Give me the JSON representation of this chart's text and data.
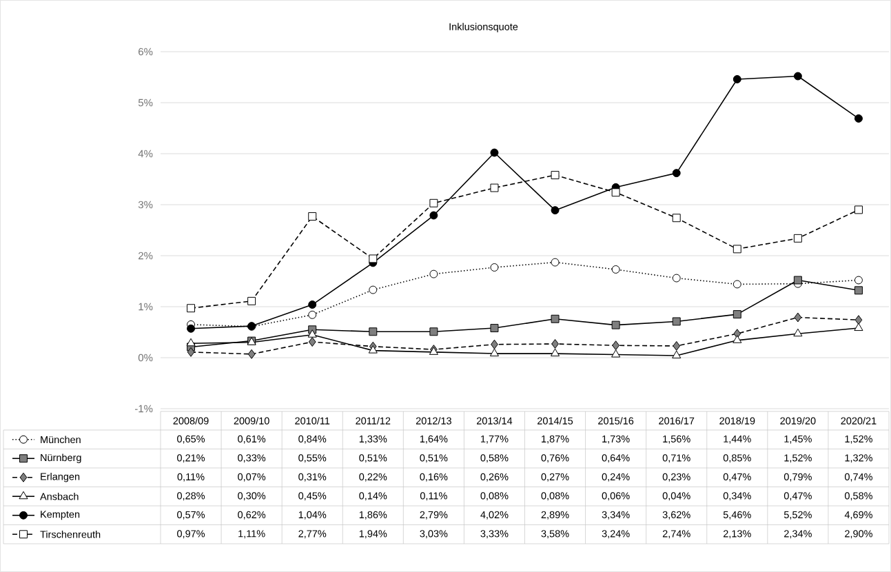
{
  "chart_data": {
    "type": "line",
    "title": "Inklusionsquote",
    "categories": [
      "2008/09",
      "2009/10",
      "2010/11",
      "2011/12",
      "2012/13",
      "2013/14",
      "2014/15",
      "2015/16",
      "2016/17",
      "2018/19",
      "2019/20",
      "2020/21"
    ],
    "ylim": [
      -1,
      6
    ],
    "yticks": [
      {
        "value": -1,
        "label": "-1%"
      },
      {
        "value": 0,
        "label": "0%"
      },
      {
        "value": 1,
        "label": "1%"
      },
      {
        "value": 2,
        "label": "2%"
      },
      {
        "value": 3,
        "label": "3%"
      },
      {
        "value": 4,
        "label": "4%"
      },
      {
        "value": 5,
        "label": "5%"
      },
      {
        "value": 6,
        "label": "6%"
      }
    ],
    "grid": "y",
    "legend": "bottom",
    "series": [
      {
        "name": "München",
        "color": "#ffffff",
        "marker": "circle",
        "line_style": "dotted",
        "values": [
          0.65,
          0.61,
          0.84,
          1.33,
          1.64,
          1.77,
          1.87,
          1.73,
          1.56,
          1.44,
          1.45,
          1.52
        ],
        "value_labels": [
          "0,65%",
          "0,61%",
          "0,84%",
          "1,33%",
          "1,64%",
          "1,77%",
          "1,87%",
          "1,73%",
          "1,56%",
          "1,44%",
          "1,45%",
          "1,52%"
        ]
      },
      {
        "name": "Nürnberg",
        "color": "#7f7f7f",
        "marker": "square",
        "line_style": "solid",
        "values": [
          0.21,
          0.33,
          0.55,
          0.51,
          0.51,
          0.58,
          0.76,
          0.64,
          0.71,
          0.85,
          1.52,
          1.32
        ],
        "value_labels": [
          "0,21%",
          "0,33%",
          "0,55%",
          "0,51%",
          "0,51%",
          "0,58%",
          "0,76%",
          "0,64%",
          "0,71%",
          "0,85%",
          "1,52%",
          "1,32%"
        ]
      },
      {
        "name": "Erlangen",
        "color": "#7f7f7f",
        "marker": "diamond",
        "line_style": "dashed",
        "values": [
          0.11,
          0.07,
          0.31,
          0.22,
          0.16,
          0.26,
          0.27,
          0.24,
          0.23,
          0.47,
          0.79,
          0.74
        ],
        "value_labels": [
          "0,11%",
          "0,07%",
          "0,31%",
          "0,22%",
          "0,16%",
          "0,26%",
          "0,27%",
          "0,24%",
          "0,23%",
          "0,47%",
          "0,79%",
          "0,74%"
        ]
      },
      {
        "name": "Ansbach",
        "color": "#ffffff",
        "marker": "triangle",
        "line_style": "solid",
        "values": [
          0.28,
          0.3,
          0.45,
          0.14,
          0.11,
          0.08,
          0.08,
          0.06,
          0.04,
          0.34,
          0.47,
          0.58
        ],
        "value_labels": [
          "0,28%",
          "0,30%",
          "0,45%",
          "0,14%",
          "0,11%",
          "0,08%",
          "0,08%",
          "0,06%",
          "0,04%",
          "0,34%",
          "0,47%",
          "0,58%"
        ]
      },
      {
        "name": "Kempten",
        "color": "#000000",
        "marker": "circle",
        "line_style": "solid",
        "values": [
          0.57,
          0.62,
          1.04,
          1.86,
          2.79,
          4.02,
          2.89,
          3.34,
          3.62,
          5.46,
          5.52,
          4.69
        ],
        "value_labels": [
          "0,57%",
          "0,62%",
          "1,04%",
          "1,86%",
          "2,79%",
          "4,02%",
          "2,89%",
          "3,34%",
          "3,62%",
          "5,46%",
          "5,52%",
          "4,69%"
        ]
      },
      {
        "name": "Tirschenreuth",
        "color": "#ffffff",
        "marker": "square",
        "line_style": "dashed",
        "values": [
          0.97,
          1.11,
          2.77,
          1.94,
          3.03,
          3.33,
          3.58,
          3.24,
          2.74,
          2.13,
          2.34,
          2.9
        ],
        "value_labels": [
          "0,97%",
          "1,11%",
          "2,77%",
          "1,94%",
          "3,03%",
          "3,33%",
          "3,58%",
          "3,24%",
          "2,74%",
          "2,13%",
          "2,34%",
          "2,90%"
        ]
      }
    ]
  }
}
